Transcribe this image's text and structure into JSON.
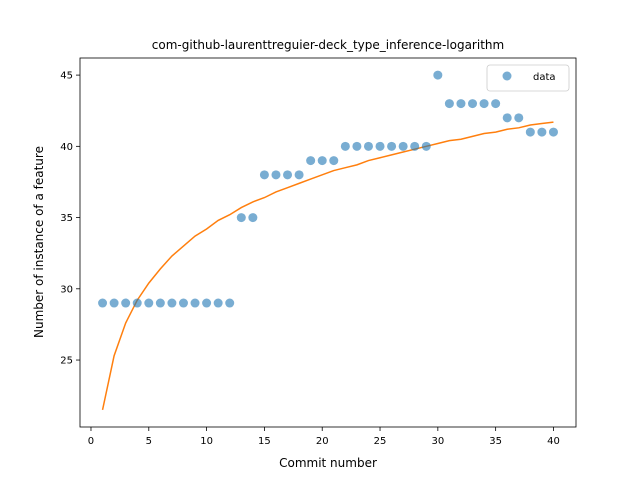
{
  "chart_data": {
    "type": "scatter",
    "title": "com-github-laurenttreguier-deck_type_inference-logarithm",
    "xlabel": "Commit number",
    "ylabel": "Number of instance of a feature",
    "xlim": [
      -0.95,
      41.95
    ],
    "ylim": [
      20.3,
      46.2
    ],
    "xticks": [
      0,
      5,
      10,
      15,
      20,
      25,
      30,
      35,
      40
    ],
    "yticks": [
      25,
      30,
      35,
      40,
      45
    ],
    "grid": false,
    "legend_position": "top-right",
    "series": [
      {
        "name": "data",
        "kind": "scatter",
        "color": "#1f77b4",
        "x": [
          1,
          2,
          3,
          4,
          5,
          6,
          7,
          8,
          9,
          10,
          11,
          12,
          13,
          14,
          15,
          16,
          17,
          18,
          19,
          20,
          21,
          22,
          23,
          24,
          25,
          26,
          27,
          28,
          29,
          30,
          31,
          32,
          33,
          34,
          35,
          36,
          37,
          38,
          39,
          40
        ],
        "y": [
          29,
          29,
          29,
          29,
          29,
          29,
          29,
          29,
          29,
          29,
          29,
          29,
          35,
          35,
          38,
          38,
          38,
          38,
          39,
          39,
          39,
          40,
          40,
          40,
          40,
          40,
          40,
          40,
          40,
          45,
          43,
          43,
          43,
          43,
          43,
          42,
          42,
          41,
          41,
          41
        ]
      },
      {
        "kind": "line",
        "color": "#ff7f0e",
        "x": [
          1,
          2,
          3,
          4,
          5,
          6,
          7,
          8,
          9,
          10,
          11,
          12,
          13,
          14,
          15,
          16,
          17,
          18,
          19,
          20,
          21,
          22,
          23,
          24,
          25,
          26,
          27,
          28,
          29,
          30,
          31,
          32,
          33,
          34,
          35,
          36,
          37,
          38,
          39,
          40
        ],
        "y": [
          21.5,
          25.3,
          27.6,
          29.2,
          30.4,
          31.4,
          32.3,
          33.0,
          33.7,
          34.2,
          34.8,
          35.2,
          35.7,
          36.1,
          36.4,
          36.8,
          37.1,
          37.4,
          37.7,
          38.0,
          38.3,
          38.5,
          38.7,
          39.0,
          39.2,
          39.4,
          39.6,
          39.8,
          40.0,
          40.2,
          40.4,
          40.5,
          40.7,
          40.9,
          41.0,
          41.2,
          41.3,
          41.5,
          41.6,
          41.7
        ]
      }
    ]
  }
}
